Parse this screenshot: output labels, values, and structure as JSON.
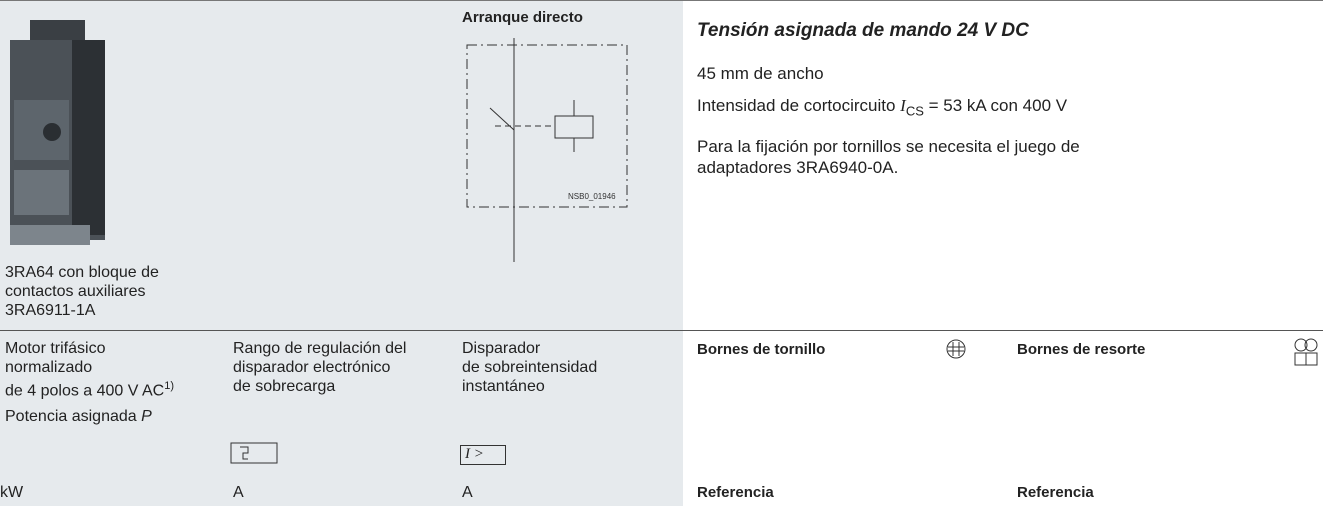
{
  "figure": {
    "caption": [
      "3RA64 con bloque de",
      "contactos auxiliares",
      "3RA6911-1A"
    ]
  },
  "diagram": {
    "title": "Arranque directo",
    "code": "NSB0_01946"
  },
  "description": {
    "title": "Tensión asignada de mando 24 V DC",
    "width": "45 mm de ancho",
    "current": {
      "before": "Intensidad de cortocircuito ",
      "symbol": "I",
      "subscript": "CS",
      "after": " = 53 kA con 400 V"
    },
    "note": [
      "Para la fijación por tornillos se necesita el juego de",
      "adaptadores 3RA6940-0A."
    ]
  },
  "columns": [
    {
      "header": [
        "Motor trifásico",
        "normalizado",
        "de 4 polos a 400 V AC"
      ],
      "footnote": "1)",
      "sub": {
        "text": "Potencia asignada ",
        "symbol": "P"
      },
      "unit": "kW"
    },
    {
      "header": [
        "Rango de regulación del",
        "disparador electrónico",
        "de sobrecarga"
      ],
      "unit": "A"
    },
    {
      "header": [
        "Disparador",
        "de sobreintensidad",
        "instantáneo"
      ],
      "symbol": "I >",
      "unit": "A"
    },
    {
      "header": [
        "Bornes de tornillo"
      ],
      "unit": "Referencia"
    },
    {
      "header": [
        "Bornes de resorte"
      ],
      "unit": "Referencia"
    }
  ]
}
